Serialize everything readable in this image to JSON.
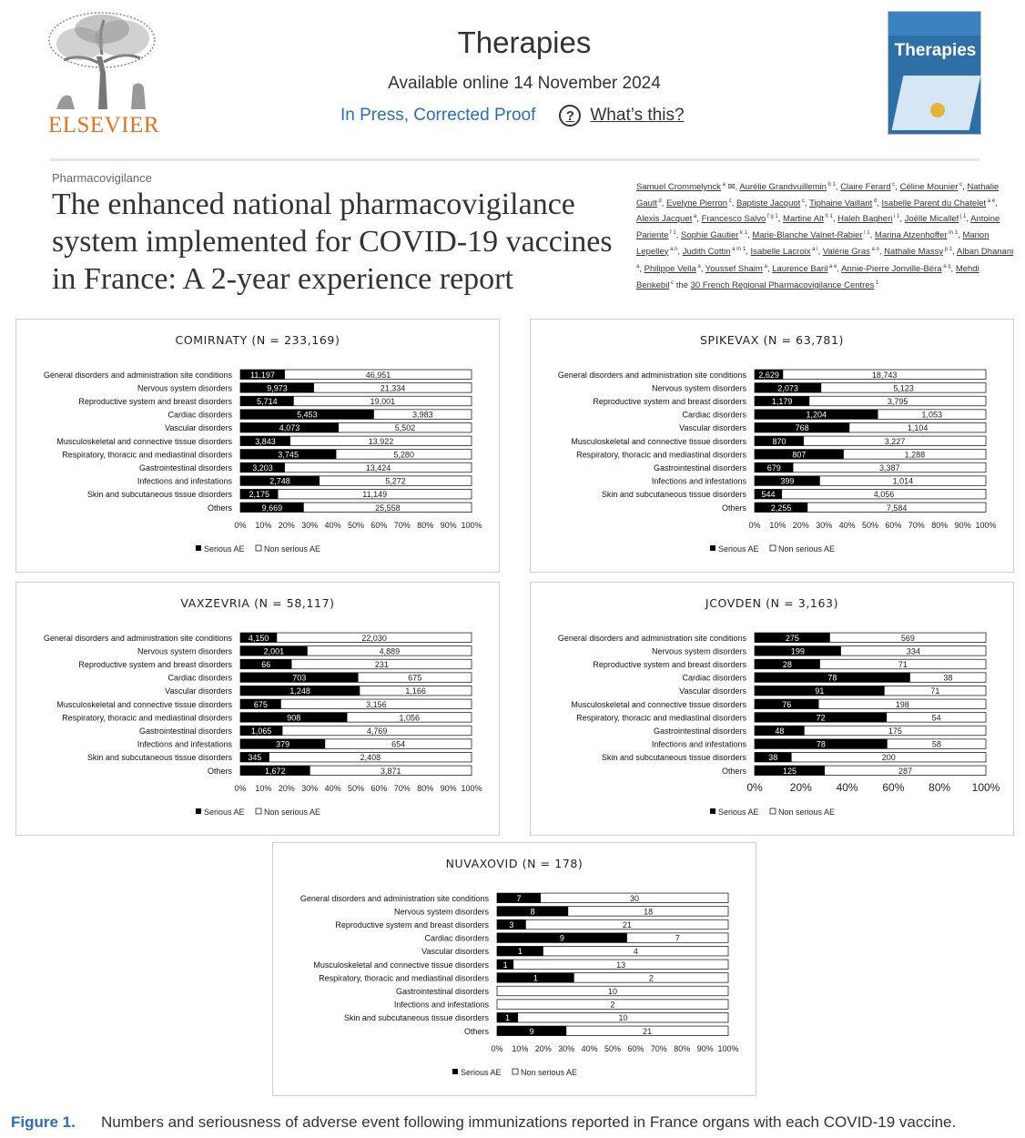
{
  "header": {
    "publisher": "ELSEVIER",
    "journal": "Therapies",
    "available": "Available online 14 November 2024",
    "status": "In Press, Corrected Proof",
    "help": "What’s this?",
    "cover_title": "Therapies"
  },
  "article": {
    "section": "Pharmacovigilance",
    "title": "The enhanced national pharmacovigilance system implemented for COVID-19 vaccines in France: A 2-year experience report",
    "authors": [
      {
        "name": "Samuel Crommelynck",
        "sup": "a"
      },
      {
        "name": "Aurélie Grandvuillemin",
        "sup": "b 1"
      },
      {
        "name": "Claire Ferard",
        "sup": "c"
      },
      {
        "name": "Céline Mounier",
        "sup": "c"
      },
      {
        "name": "Nathalie Gault",
        "sup": "d"
      },
      {
        "name": "Evelyne Pierron",
        "sup": "c"
      },
      {
        "name": "Baptiste Jacquot",
        "sup": "c"
      },
      {
        "name": "Tiphaine Vaillant",
        "sup": "d"
      },
      {
        "name": "Isabelle Parent du Chatelet",
        "sup": "a e"
      },
      {
        "name": "Alexis Jacquet",
        "sup": "a"
      },
      {
        "name": "Francesco Salvo",
        "sup": "f g 1"
      },
      {
        "name": "Martine Alt",
        "sup": "h 1"
      },
      {
        "name": "Haleh Bagheri",
        "sup": "i 1"
      },
      {
        "name": "Joëlle Micallef",
        "sup": "j 1"
      },
      {
        "name": "Antoine Pariente",
        "sup": "f 1"
      },
      {
        "name": "Sophie Gautier",
        "sup": "k 1"
      },
      {
        "name": "Marie-Blanche Valnet-Rabier",
        "sup": "l 1"
      },
      {
        "name": "Marina Atzenhoffer",
        "sup": "m 1"
      },
      {
        "name": "Marion Lepelley",
        "sup": "a n"
      },
      {
        "name": "Judith Cottin",
        "sup": "a m 1"
      },
      {
        "name": "Isabelle Lacroix",
        "sup": "a i"
      },
      {
        "name": "Valérie Gras",
        "sup": "a o"
      },
      {
        "name": "Nathalie Massy",
        "sup": "p 1"
      },
      {
        "name": "Alban Dhanani",
        "sup": "a"
      },
      {
        "name": "Philippe Vella",
        "sup": "a"
      },
      {
        "name": "Youssef Shaim",
        "sup": "a"
      },
      {
        "name": "Laurence Baril",
        "sup": "a e"
      },
      {
        "name": "Annie-Pierre Jonville-Béra",
        "sup": "a q"
      },
      {
        "name": "Mehdi Benkebil",
        "sup": "c"
      }
    ],
    "group": "30 French Regional Pharmacovigilance Centres",
    "group_sup": "1",
    "group_prefix": "the"
  },
  "chart_data": [
    {
      "type": "bar",
      "stacked": "percent",
      "title": "COMIRNATY (N = 233,169)",
      "categories": [
        "General disorders and administration site conditions",
        "Nervous system disorders",
        "Reproductive system and breast disorders",
        "Cardiac disorders",
        "Vascular disorders",
        "Musculoskeletal and connective tissue disorders",
        "Respiratory, thoracic and mediastinal disorders",
        "Gastrointestinal disorders",
        "Infections and infestations",
        "Skin and subcutaneous tissue disorders",
        "Others"
      ],
      "series": [
        {
          "name": "Serious AE",
          "values": [
            "11,197",
            "9,973",
            "5,714",
            "5,453",
            "4,073",
            "3,843",
            "3,745",
            "3,203",
            "2,748",
            "2,175",
            "9,669"
          ]
        },
        {
          "name": "Non serious AE",
          "values": [
            "46,951",
            "21,334",
            "19,001",
            "3,983",
            "5,502",
            "13,922",
            "5,280",
            "13,424",
            "5,272",
            "11,149",
            "25,558"
          ]
        }
      ],
      "xticks": [
        "0%",
        "10%",
        "20%",
        "30%",
        "40%",
        "50%",
        "60%",
        "70%",
        "80%",
        "90%",
        "100%"
      ],
      "legend": [
        "Serious AE",
        "Non serious AE"
      ]
    },
    {
      "type": "bar",
      "stacked": "percent",
      "title": "SPIKEVAX (N = 63,781)",
      "categories": [
        "General disorders and administration site conditions",
        "Nervous system disorders",
        "Reproductive system and breast disorders",
        "Cardiac disorders",
        "Vascular disorders",
        "Musculoskeletal and connective tissue disorders",
        "Respiratory, thoracic and mediastinal disorders",
        "Gastrointestinal disorders",
        "Infections and infestations",
        "Skin and subcutaneous tissue disorders",
        "Others"
      ],
      "series": [
        {
          "name": "Serious AE",
          "values": [
            "2,629",
            "2,073",
            "1,179",
            "1,204",
            "768",
            "870",
            "807",
            "679",
            "399",
            "544",
            "2,255"
          ]
        },
        {
          "name": "Non serious AE",
          "values": [
            "18,743",
            "5,123",
            "3,795",
            "1,053",
            "1,104",
            "3,227",
            "1,288",
            "3,387",
            "1,014",
            "4,056",
            "7,584"
          ]
        }
      ],
      "xticks": [
        "0%",
        "10%",
        "20%",
        "30%",
        "40%",
        "50%",
        "60%",
        "70%",
        "80%",
        "90%",
        "100%"
      ],
      "legend": [
        "Serious AE",
        "Non serious AE"
      ]
    },
    {
      "type": "bar",
      "stacked": "percent",
      "title": "VAXZEVRIA (N = 58,117)",
      "categories": [
        "General disorders and administration site conditions",
        "Nervous system disorders",
        "Reproductive system and breast disorders",
        "Cardiac disorders",
        "Vascular disorders",
        "Musculoskeletal and connective tissue disorders",
        "Respiratory, thoracic and mediastinal disorders",
        "Gastrointestinal disorders",
        "Infections and infestations",
        "Skin and subcutaneous tissue disorders",
        "Others"
      ],
      "series": [
        {
          "name": "Serious AE",
          "values": [
            "4,150",
            "2,001",
            "66",
            "703",
            "1,248",
            "675",
            "908",
            "1,065",
            "379",
            "345",
            "1,672"
          ]
        },
        {
          "name": "Non serious AE",
          "values": [
            "22,030",
            "4,889",
            "231",
            "675",
            "1,166",
            "3,156",
            "1,056",
            "4,769",
            "654",
            "2,408",
            "3,871"
          ]
        }
      ],
      "xticks": [
        "0%",
        "10%",
        "20%",
        "30%",
        "40%",
        "50%",
        "60%",
        "70%",
        "80%",
        "90%",
        "100%"
      ],
      "legend": [
        "Serious AE",
        "Non serious AE"
      ]
    },
    {
      "type": "bar",
      "stacked": "percent",
      "title": "JCOVDEN (N = 3,163)",
      "categories": [
        "General disorders and administration site conditions",
        "Nervous system disorders",
        "Reproductive system and breast disorders",
        "Cardiac disorders",
        "Vascular disorders",
        "Musculoskeletal and connective tissue disorders",
        "Respiratory, thoracic and mediastinal disorders",
        "Gastrointestinal disorders",
        "Infections and infestations",
        "Skin and subcutaneous tissue disorders",
        "Others"
      ],
      "series": [
        {
          "name": "Serious AE",
          "values": [
            "275",
            "199",
            "28",
            "78",
            "91",
            "76",
            "72",
            "48",
            "78",
            "38",
            "125"
          ]
        },
        {
          "name": "Non serious AE",
          "values": [
            "569",
            "334",
            "71",
            "38",
            "71",
            "198",
            "54",
            "175",
            "58",
            "200",
            "287"
          ]
        }
      ],
      "xticks": [
        "0%",
        "20%",
        "40%",
        "60%",
        "80%",
        "100%"
      ],
      "legend": [
        "Serious AE",
        "Non serious AE"
      ]
    },
    {
      "type": "bar",
      "stacked": "percent",
      "title": "NUVAXOVID (N = 178)",
      "categories": [
        "General disorders and administration site conditions",
        "Nervous system disorders",
        "Reproductive system and breast disorders",
        "Cardiac disorders",
        "Vascular disorders",
        "Musculoskeletal and connective tissue disorders",
        "Respiratory, thoracic and mediastinal disorders",
        "Gastrointestinal disorders",
        "Infections and infestations",
        "Skin and subcutaneous tissue disorders",
        "Others"
      ],
      "series": [
        {
          "name": "Serious AE",
          "values": [
            "7",
            "8",
            "3",
            "9",
            "1",
            "1",
            "1",
            "",
            "",
            "1",
            "9"
          ]
        },
        {
          "name": "Non serious AE",
          "values": [
            "30",
            "18",
            "21",
            "7",
            "4",
            "13",
            "2",
            "10",
            "2",
            "10",
            "21"
          ]
        }
      ],
      "xticks": [
        "0%",
        "10%",
        "20%",
        "30%",
        "40%",
        "50%",
        "60%",
        "70%",
        "80%",
        "90%",
        "100%"
      ],
      "legend": [
        "Serious AE",
        "Non serious AE"
      ]
    }
  ],
  "caption": {
    "label": "Figure 1.",
    "text": "Numbers and seriousness of adverse event following immunizations reported in France organs with each COVID-19 vaccine."
  }
}
